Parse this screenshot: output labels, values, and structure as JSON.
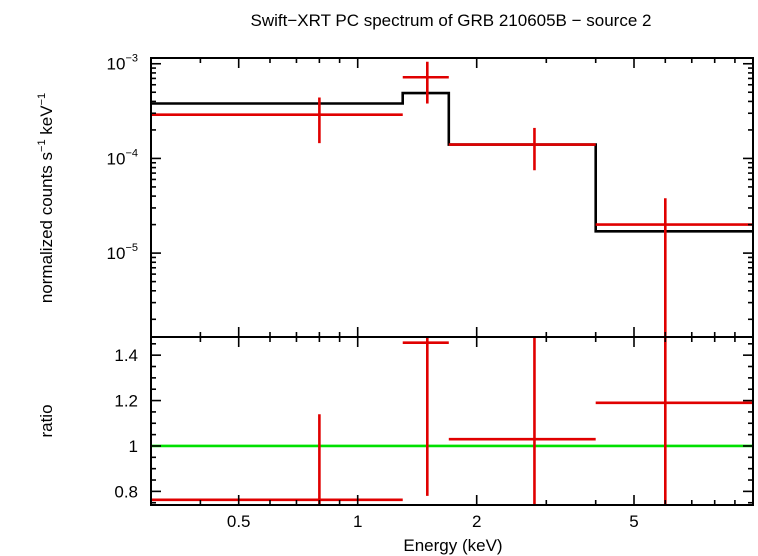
{
  "chart_data": {
    "type": "line",
    "title": "Swift−XRT PC spectrum of GRB 210605B − source 2",
    "xlabel": "Energy (keV)",
    "xscale": "log",
    "xlim": [
      0.3,
      10
    ],
    "x_ticks": [
      {
        "value": 0.5,
        "label": "0.5"
      },
      {
        "value": 1,
        "label": "1"
      },
      {
        "value": 2,
        "label": "2"
      },
      {
        "value": 5,
        "label": "5"
      }
    ],
    "colors": {
      "data": "#e00000",
      "model": "#000000",
      "unity": "#00e000"
    },
    "top_panel": {
      "ylabel": {
        "base": "normalized counts s",
        "exp1": "−1",
        "mid": " keV",
        "exp2": "−1"
      },
      "yscale": "log",
      "ylim": [
        1.3e-06,
        0.00115
      ],
      "y_ticks": [
        {
          "value": 0.001,
          "base": "10",
          "exp": "−3"
        },
        {
          "value": 0.0001,
          "base": "10",
          "exp": "−4"
        },
        {
          "value": 1e-05,
          "base": "10",
          "exp": "−5"
        }
      ],
      "data": [
        {
          "x": 0.8,
          "x_lo": 0.3,
          "x_hi": 1.3,
          "y": 0.00029,
          "y_lo": 0.000145,
          "y_hi": 0.00044
        },
        {
          "x": 1.5,
          "x_lo": 1.3,
          "x_hi": 1.7,
          "y": 0.00072,
          "y_lo": 0.00038,
          "y_hi": 0.00105
        },
        {
          "x": 2.8,
          "x_lo": 1.7,
          "x_hi": 4.0,
          "y": 0.00014,
          "y_lo": 7.5e-05,
          "y_hi": 0.00021
        },
        {
          "x": 6.0,
          "x_lo": 4.0,
          "x_hi": 10.0,
          "y": 2e-05,
          "y_lo": 1.3e-06,
          "y_hi": 3.8e-05
        }
      ],
      "model_steps": [
        {
          "x_lo": 0.3,
          "x_hi": 1.3,
          "y": 0.00038
        },
        {
          "x_lo": 1.3,
          "x_hi": 1.7,
          "y": 0.00049
        },
        {
          "x_lo": 1.7,
          "x_hi": 4.0,
          "y": 0.00014
        },
        {
          "x_lo": 4.0,
          "x_hi": 10.0,
          "y": 1.7e-05
        }
      ]
    },
    "bottom_panel": {
      "ylabel": "ratio",
      "yscale": "linear",
      "ylim": [
        0.74,
        1.48
      ],
      "y_ticks": [
        {
          "value": 0.8,
          "label": "0.8"
        },
        {
          "value": 1.0,
          "label": "1"
        },
        {
          "value": 1.2,
          "label": "1.2"
        },
        {
          "value": 1.4,
          "label": "1.4"
        }
      ],
      "reference_line": 1.0,
      "data": [
        {
          "x": 0.8,
          "x_lo": 0.3,
          "x_hi": 1.3,
          "y": 0.763,
          "y_lo": 0.74,
          "y_hi": 1.14
        },
        {
          "x": 1.5,
          "x_lo": 1.3,
          "x_hi": 1.7,
          "y": 1.455,
          "y_lo": 0.78,
          "y_hi": 1.48
        },
        {
          "x": 2.8,
          "x_lo": 1.7,
          "x_hi": 4.0,
          "y": 1.03,
          "y_lo": 0.74,
          "y_hi": 1.48
        },
        {
          "x": 6.0,
          "x_lo": 4.0,
          "x_hi": 10.0,
          "y": 1.19,
          "y_lo": 0.74,
          "y_hi": 1.48
        }
      ]
    }
  }
}
